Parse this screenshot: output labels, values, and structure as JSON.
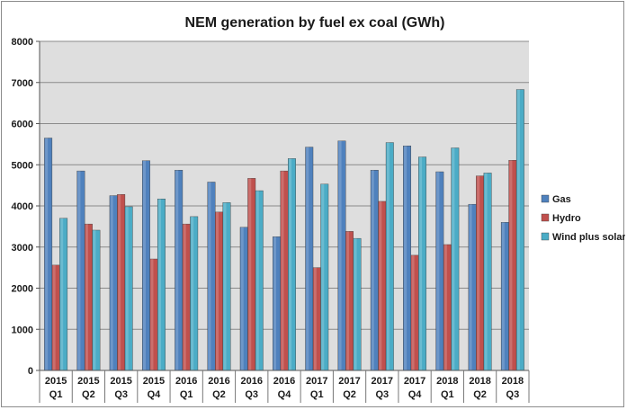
{
  "chart_data": {
    "type": "bar",
    "title": "NEM generation by fuel ex coal (GWh)",
    "xlabel": "",
    "ylabel": "",
    "ylim": [
      0,
      8000
    ],
    "yticks": [
      0,
      1000,
      2000,
      3000,
      4000,
      5000,
      6000,
      7000,
      8000
    ],
    "grid": true,
    "legend_position": "right",
    "categories": [
      [
        "2015",
        "Q1"
      ],
      [
        "2015",
        "Q2"
      ],
      [
        "2015",
        "Q3"
      ],
      [
        "2015",
        "Q4"
      ],
      [
        "2016",
        "Q1"
      ],
      [
        "2016",
        "Q2"
      ],
      [
        "2016",
        "Q3"
      ],
      [
        "2016",
        "Q4"
      ],
      [
        "2017",
        "Q1"
      ],
      [
        "2017",
        "Q2"
      ],
      [
        "2017",
        "Q3"
      ],
      [
        "2017",
        "Q4"
      ],
      [
        "2018",
        "Q1"
      ],
      [
        "2018",
        "Q2"
      ],
      [
        "2018",
        "Q3"
      ]
    ],
    "series": [
      {
        "name": "Gas",
        "color": "#4f81bd",
        "values": [
          5650,
          4850,
          4250,
          5100,
          4870,
          4580,
          3480,
          3250,
          5430,
          5580,
          4870,
          5460,
          4830,
          4040,
          3600
        ]
      },
      {
        "name": "Hydro",
        "color": "#c0504d",
        "values": [
          2560,
          3560,
          4280,
          2710,
          3560,
          3850,
          4670,
          4850,
          2500,
          3380,
          4110,
          2800,
          3060,
          4730,
          5110
        ]
      },
      {
        "name": "Wind plus solar",
        "color": "#4bacc6",
        "values": [
          3700,
          3410,
          3980,
          4170,
          3740,
          4080,
          4370,
          5150,
          4530,
          3210,
          5540,
          5190,
          5410,
          4800,
          6830
        ]
      }
    ]
  }
}
